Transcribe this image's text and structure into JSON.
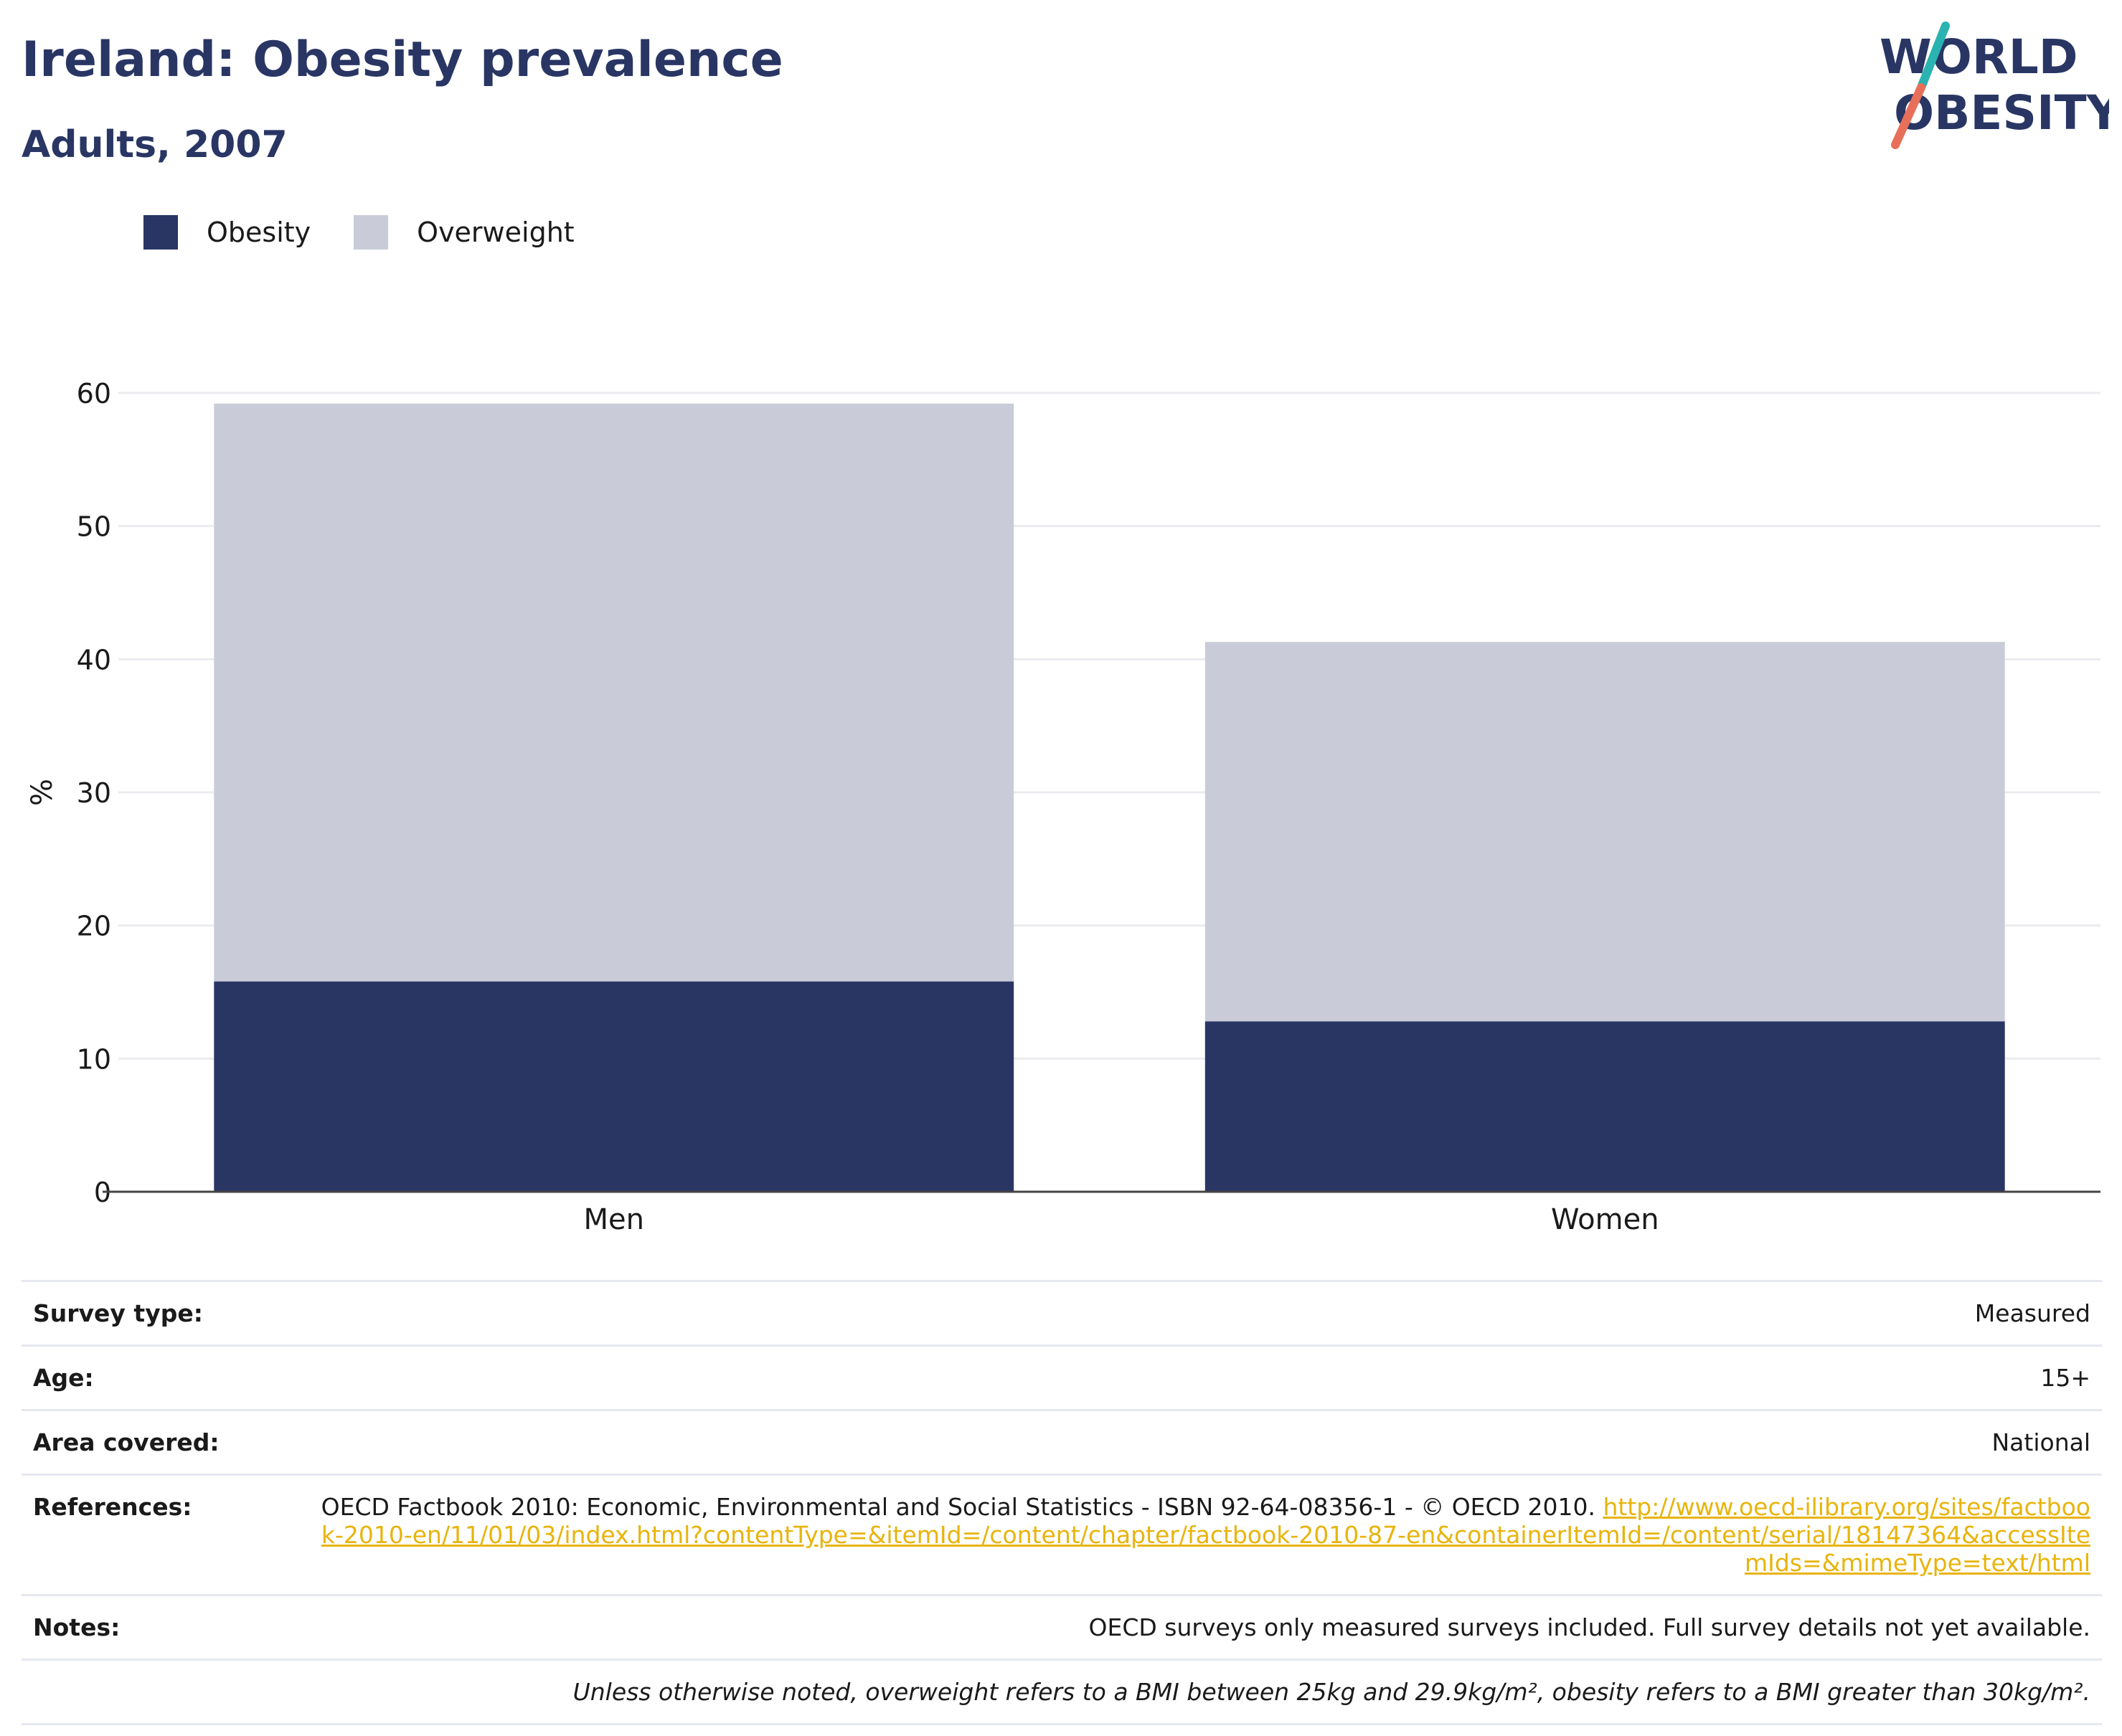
{
  "header": {
    "title": "Ireland: Obesity prevalence",
    "subtitle": "Adults, 2007"
  },
  "logo": {
    "line1": "WORLD",
    "line2": "OBESITY",
    "text_color": "#293664",
    "slash_colors": [
      "#2ab3b0",
      "#e8705a"
    ]
  },
  "legend": [
    {
      "label": "Obesity",
      "color": "#293664"
    },
    {
      "label": "Overweight",
      "color": "#c9ccd8"
    }
  ],
  "chart_data": {
    "type": "bar",
    "stacked": true,
    "categories": [
      "Men",
      "Women"
    ],
    "series": [
      {
        "name": "Obesity",
        "color": "#293664",
        "values": [
          15.8,
          12.8
        ]
      },
      {
        "name": "Overweight",
        "color": "#c9ccd8",
        "values": [
          43.4,
          28.5
        ]
      }
    ],
    "ylabel": "%",
    "ylim": [
      0,
      60
    ],
    "yticks": [
      0,
      10,
      20,
      30,
      40,
      50,
      60
    ],
    "grid": true,
    "legend_position": "top-left"
  },
  "info": {
    "survey_type": {
      "label": "Survey type:",
      "value": "Measured"
    },
    "age": {
      "label": "Age:",
      "value": "15+"
    },
    "area": {
      "label": "Area covered:",
      "value": "National"
    },
    "references": {
      "label": "References:",
      "text": "OECD Factbook 2010: Economic, Environmental and Social Statistics - ISBN 92-64-08356-1 - © OECD 2010. ",
      "link": "http://www.oecd-ilibrary.org/sites/factbook-2010-en/11/01/03/index.html?contentType=&itemId=/content/chapter/factbook-2010-87-en&containerItemId=/content/serial/18147364&accessItemIds=&mimeType=text/html"
    },
    "notes": {
      "label": "Notes:",
      "value": "OECD surveys only measured surveys included. Full survey details not yet available."
    },
    "footnote": "Unless otherwise noted, overweight refers to a BMI between 25kg and 29.9kg/m², obesity refers to a BMI greater than 30kg/m²."
  }
}
